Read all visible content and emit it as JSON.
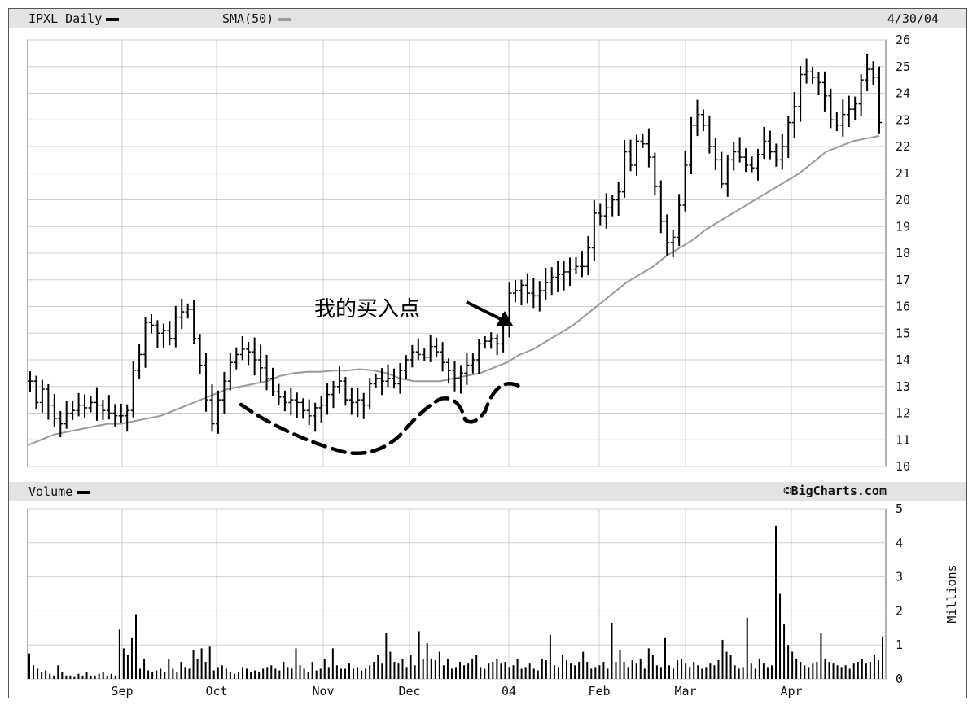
{
  "header": {
    "ticker_label": "IPXL Daily",
    "sma_label": "SMA(50)",
    "date_label": "4/30/04",
    "price_color": "#000000",
    "sma_color": "#9a9a9a"
  },
  "volume_header": {
    "label": "Volume",
    "credit": "©BigCharts.com"
  },
  "chart_data": [
    {
      "type": "line",
      "name": "price",
      "x_ticks": [
        "Sep",
        "Oct",
        "Nov",
        "Dec",
        "04",
        "Feb",
        "Mar",
        "Apr"
      ],
      "y_ticks": [
        10,
        11,
        12,
        13,
        14,
        15,
        16,
        17,
        18,
        19,
        20,
        21,
        22,
        23,
        24,
        25,
        26
      ],
      "ylim": [
        10,
        26
      ],
      "grid": true,
      "series": [
        {
          "name": "IPXL Daily",
          "style": "ohlc-bars",
          "values": [
            13.2,
            12.4,
            12.9,
            12.3,
            11.8,
            11.6,
            12.0,
            12.1,
            12.3,
            12.2,
            12.4,
            12.3,
            12.1,
            12.0,
            11.9,
            11.9,
            12.1,
            13.6,
            14.2,
            15.4,
            15.3,
            15.0,
            15.1,
            14.8,
            15.6,
            15.8,
            15.9,
            14.8,
            13.8,
            12.5,
            11.6,
            12.5,
            13.2,
            13.9,
            14.2,
            14.4,
            14.3,
            14.0,
            13.7,
            13.3,
            12.8,
            12.6,
            12.4,
            12.5,
            12.4,
            12.1,
            11.9,
            12.2,
            12.3,
            12.7,
            13.0,
            13.2,
            12.5,
            12.4,
            12.5,
            12.3,
            13.1,
            13.3,
            13.2,
            13.3,
            13.1,
            13.6,
            14.0,
            14.3,
            14.2,
            14.1,
            14.5,
            14.3,
            13.9,
            13.6,
            13.3,
            13.5,
            13.8,
            14.0,
            14.6,
            14.7,
            14.8,
            14.6,
            15.4,
            16.5,
            16.6,
            16.8,
            16.5,
            16.4,
            16.6,
            16.9,
            17.1,
            17.2,
            17.3,
            17.4,
            17.5,
            17.5,
            18.2,
            19.5,
            19.4,
            19.7,
            20.0,
            20.3,
            21.8,
            21.3,
            22.2,
            22.1,
            21.6,
            20.5,
            19.2,
            18.4,
            18.6,
            19.8,
            21.3,
            22.8,
            23.2,
            22.8,
            22.0,
            21.5,
            20.6,
            21.5,
            21.8,
            21.6,
            21.3,
            21.2,
            21.7,
            22.2,
            21.8,
            21.5,
            22.0,
            22.9,
            23.5,
            24.7,
            24.8,
            24.6,
            24.4,
            23.9,
            23.0,
            22.8,
            23.2,
            23.4,
            23.6,
            24.5,
            24.9,
            24.6,
            22.9
          ],
          "color": "#000000"
        },
        {
          "name": "SMA(50)",
          "style": "line",
          "values": [
            10.8,
            11.0,
            11.2,
            11.3,
            11.4,
            11.5,
            11.6,
            11.6,
            11.7,
            11.8,
            11.9,
            12.1,
            12.3,
            12.5,
            12.7,
            12.9,
            13.0,
            13.1,
            13.2,
            13.4,
            13.5,
            13.55,
            13.55,
            13.6,
            13.6,
            13.65,
            13.6,
            13.5,
            13.3,
            13.2,
            13.2,
            13.2,
            13.3,
            13.4,
            13.5,
            13.7,
            13.9,
            14.2,
            14.4,
            14.7,
            15.0,
            15.3,
            15.7,
            16.1,
            16.5,
            16.9,
            17.2,
            17.5,
            17.9,
            18.2,
            18.5,
            18.9,
            19.2,
            19.5,
            19.8,
            20.1,
            20.4,
            20.7,
            21.0,
            21.4,
            21.8,
            22.0,
            22.2,
            22.3,
            22.4
          ],
          "color": "#9a9a9a"
        }
      ],
      "annotation": {
        "text": "我的买入点"
      }
    },
    {
      "type": "bar",
      "name": "volume",
      "x_ticks": [
        "Sep",
        "Oct",
        "Nov",
        "Dec",
        "04",
        "Feb",
        "Mar",
        "Apr"
      ],
      "y_ticks": [
        0,
        1,
        2,
        3,
        4,
        5
      ],
      "ylim": [
        0,
        5
      ],
      "ylabel": "Millions",
      "grid": true,
      "series": [
        {
          "name": "Volume",
          "values": [
            0.75,
            0.4,
            0.3,
            0.2,
            0.25,
            0.15,
            0.1,
            0.4,
            0.2,
            0.1,
            0.1,
            0.08,
            0.15,
            0.1,
            0.2,
            0.1,
            0.1,
            0.15,
            0.2,
            0.1,
            0.15,
            0.1,
            1.45,
            0.9,
            0.7,
            1.2,
            1.9,
            0.3,
            0.6,
            0.25,
            0.2,
            0.25,
            0.3,
            0.2,
            0.6,
            0.3,
            0.2,
            0.5,
            0.35,
            0.3,
            0.85,
            0.6,
            0.9,
            0.5,
            0.95,
            0.25,
            0.35,
            0.4,
            0.3,
            0.2,
            0.15,
            0.2,
            0.35,
            0.3,
            0.2,
            0.25,
            0.2,
            0.3,
            0.35,
            0.4,
            0.3,
            0.25,
            0.5,
            0.35,
            0.3,
            0.9,
            0.4,
            0.3,
            0.2,
            0.5,
            0.25,
            0.3,
            0.6,
            0.35,
            0.9,
            0.4,
            0.3,
            0.3,
            0.45,
            0.3,
            0.35,
            0.25,
            0.3,
            0.4,
            0.5,
            0.7,
            0.45,
            1.35,
            0.8,
            0.5,
            0.45,
            0.6,
            0.35,
            0.7,
            0.4,
            1.4,
            0.6,
            1.05,
            0.6,
            0.55,
            0.8,
            0.4,
            0.6,
            0.3,
            0.35,
            0.5,
            0.4,
            0.45,
            0.6,
            0.7,
            0.35,
            0.3,
            0.45,
            0.5,
            0.6,
            0.45,
            0.5,
            0.35,
            0.4,
            0.6,
            0.3,
            0.35,
            0.45,
            0.3,
            0.25,
            0.6,
            0.55,
            1.3,
            0.4,
            0.35,
            0.7,
            0.55,
            0.45,
            0.4,
            0.5,
            0.8,
            0.5,
            0.3,
            0.35,
            0.4,
            0.5,
            0.3,
            1.65,
            0.5,
            0.85,
            0.5,
            0.35,
            0.55,
            0.45,
            0.6,
            0.3,
            0.9,
            0.7,
            0.4,
            0.35,
            1.2,
            0.4,
            0.3,
            0.55,
            0.6,
            0.45,
            0.35,
            0.5,
            0.4,
            0.3,
            0.35,
            0.45,
            0.4,
            0.55,
            1.15,
            0.8,
            0.7,
            0.4,
            0.3,
            0.35,
            1.8,
            0.45,
            0.3,
            0.6,
            0.45,
            0.35,
            0.4,
            4.5,
            2.5,
            1.6,
            1.0,
            0.8,
            0.6,
            0.5,
            0.4,
            0.35,
            0.45,
            0.5,
            1.35,
            0.6,
            0.5,
            0.45,
            0.4,
            0.35,
            0.4,
            0.3,
            0.45,
            0.5,
            0.6,
            0.45,
            0.5,
            0.7,
            0.55,
            1.25
          ],
          "color": "#000000"
        }
      ]
    }
  ]
}
